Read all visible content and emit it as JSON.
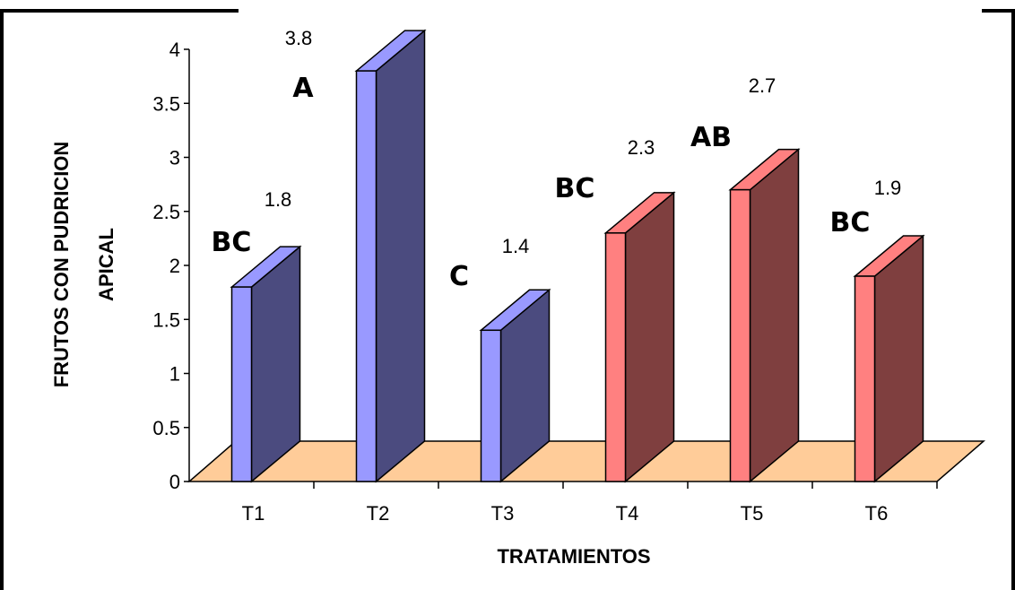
{
  "chart_data": {
    "type": "bar",
    "categories": [
      "T1",
      "T2",
      "T3",
      "T4",
      "T5",
      "T6"
    ],
    "values": [
      1.8,
      3.8,
      1.4,
      2.3,
      2.7,
      1.9
    ],
    "value_labels": [
      "1.8",
      "3.8",
      "1.4",
      "2.3",
      "2.7",
      "1.9"
    ],
    "group_letters": [
      "BC",
      "A",
      "C",
      "BC",
      "AB",
      "BC"
    ],
    "ylabel_lines": [
      "FRUTOS CON PUDRICION",
      "APICAL"
    ],
    "xlabel": "TRATAMIENTOS",
    "ylim": [
      0,
      4
    ],
    "yticks": [
      "0",
      "0.5",
      "1",
      "1.5",
      "2",
      "2.5",
      "3",
      "3.5",
      "4"
    ],
    "style": "3d-bar",
    "colors": {
      "blue_front": "#9999ff",
      "blue_side": "#4b4b7f",
      "red_front": "#ff8080",
      "red_side": "#7f3f3f",
      "floor": "#ffcc99",
      "bar_color_groups": [
        "blue",
        "blue",
        "blue",
        "red",
        "red",
        "red"
      ]
    }
  }
}
